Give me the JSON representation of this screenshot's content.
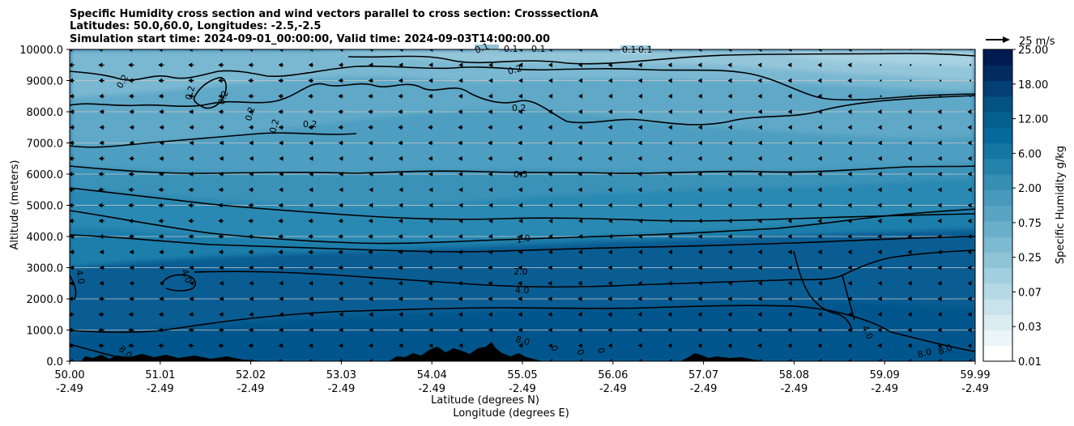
{
  "chart_data": {
    "type": "contour-cross-section",
    "title_lines": [
      "Specific Humidity cross section and wind vectors parallel to cross section: CrosssectionA",
      "Latitudes: 50.0,60.0, Longitudes: -2.5,-2.5",
      "Simulation start time: 2024-09-01_00:00:00, Valid time: 2024-09-03T14:00:00.00"
    ],
    "xlabel_lat": "Latitude (degrees N)",
    "xlabel_lon": "Longitude (degrees E)",
    "ylabel": "Altitude (meters)",
    "x_ticks_lat": [
      "50.00",
      "51.01",
      "52.02",
      "53.03",
      "54.04",
      "55.05",
      "56.06",
      "57.07",
      "58.08",
      "59.09",
      "59.99"
    ],
    "x_ticks_lon": [
      "-2.49",
      "-2.49",
      "-2.49",
      "-2.49",
      "-2.49",
      "-2.49",
      "-2.49",
      "-2.49",
      "-2.49",
      "-2.49",
      "-2.49"
    ],
    "x_range": [
      0,
      10
    ],
    "y_ticks": [
      "0.0",
      "1000.0",
      "2000.0",
      "3000.0",
      "4000.0",
      "5000.0",
      "6000.0",
      "7000.0",
      "8000.0",
      "9000.0",
      "10000.0"
    ],
    "ylim": [
      0,
      10000
    ],
    "colorbar": {
      "label": "Specific Humidity g/kg",
      "tick_labels": [
        "0.01",
        "0.03",
        "0.07",
        "0.25",
        "0.75",
        "2.00",
        "6.00",
        "12.00",
        "18.00",
        "25.00"
      ],
      "levels": [
        "0.01",
        "0.02",
        "0.03",
        "0.05",
        "0.07",
        "0.1",
        "0.25",
        "0.5",
        "0.75",
        "1.0",
        "2.0",
        "4.0",
        "6.0",
        "10.0",
        "12.0",
        "15.0",
        "18.0",
        "20.0",
        "25.0"
      ],
      "colors": [
        "#ffffff",
        "#ecf5f8",
        "#dbecf2",
        "#c9e3ec",
        "#b4d9e5",
        "#a2cfdf",
        "#8fc4d7",
        "#7cbad1",
        "#6aafc9",
        "#59a4c2",
        "#4899bb",
        "#368eb3",
        "#2582ab",
        "#1477a3",
        "#056a9b",
        "#05608f",
        "#045282",
        "#033f73",
        "#022b60",
        "#001b52"
      ]
    },
    "contour_labels": [
      "0.1",
      "0.1",
      "0.1",
      "0.1",
      "0.1",
      "0.2",
      "0.2",
      "0.2",
      "0.2",
      "0.2",
      "0.2",
      "0.2",
      "0.2",
      "0.5",
      "1.0",
      "2.0",
      "4.0",
      "4.0",
      "4.0",
      "4.0",
      "8.0",
      "8.0",
      "8.0",
      "8.0",
      "0",
      "0",
      "0"
    ],
    "quiver_key": {
      "label": "25 m/s",
      "value": 25
    },
    "wind": {
      "component": "parallel to cross section",
      "direction": "southward",
      "nx": 31,
      "ny": 21
    }
  }
}
